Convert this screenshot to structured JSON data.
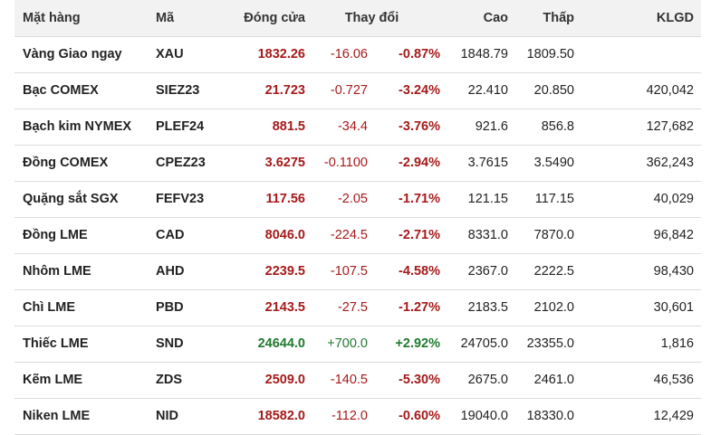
{
  "table": {
    "headers": {
      "name": "Mặt hàng",
      "code": "Mã",
      "close": "Đóng cửa",
      "change": "Thay đổi",
      "high": "Cao",
      "low": "Thấp",
      "volume": "KLGD"
    },
    "rows": [
      {
        "name": "Vàng Giao ngay",
        "code": "XAU",
        "close": "1832.26",
        "change": "-16.06",
        "pct": "-0.87%",
        "high": "1848.79",
        "low": "1809.50",
        "volume": "",
        "direction": "down"
      },
      {
        "name": "Bạc COMEX",
        "code": "SIEZ23",
        "close": "21.723",
        "change": "-0.727",
        "pct": "-3.24%",
        "high": "22.410",
        "low": "20.850",
        "volume": "420,042",
        "direction": "down"
      },
      {
        "name": "Bạch kim NYMEX",
        "code": "PLEF24",
        "close": "881.5",
        "change": "-34.4",
        "pct": "-3.76%",
        "high": "921.6",
        "low": "856.8",
        "volume": "127,682",
        "direction": "down"
      },
      {
        "name": "Đồng COMEX",
        "code": "CPEZ23",
        "close": "3.6275",
        "change": "-0.1100",
        "pct": "-2.94%",
        "high": "3.7615",
        "low": "3.5490",
        "volume": "362,243",
        "direction": "down"
      },
      {
        "name": "Quặng sắt SGX",
        "code": "FEFV23",
        "close": "117.56",
        "change": "-2.05",
        "pct": "-1.71%",
        "high": "121.15",
        "low": "117.15",
        "volume": "40,029",
        "direction": "down"
      },
      {
        "name": "Đồng LME",
        "code": "CAD",
        "close": "8046.0",
        "change": "-224.5",
        "pct": "-2.71%",
        "high": "8331.0",
        "low": "7870.0",
        "volume": "96,842",
        "direction": "down"
      },
      {
        "name": "Nhôm LME",
        "code": "AHD",
        "close": "2239.5",
        "change": "-107.5",
        "pct": "-4.58%",
        "high": "2367.0",
        "low": "2222.5",
        "volume": "98,430",
        "direction": "down"
      },
      {
        "name": "Chì LME",
        "code": "PBD",
        "close": "2143.5",
        "change": "-27.5",
        "pct": "-1.27%",
        "high": "2183.5",
        "low": "2102.0",
        "volume": "30,601",
        "direction": "down"
      },
      {
        "name": "Thiếc LME",
        "code": "SND",
        "close": "24644.0",
        "change": "+700.0",
        "pct": "+2.92%",
        "high": "24705.0",
        "low": "23355.0",
        "volume": "1,816",
        "direction": "up"
      },
      {
        "name": "Kẽm LME",
        "code": "ZDS",
        "close": "2509.0",
        "change": "-140.5",
        "pct": "-5.30%",
        "high": "2675.0",
        "low": "2461.0",
        "volume": "46,536",
        "direction": "down"
      },
      {
        "name": "Niken LME",
        "code": "NID",
        "close": "18582.0",
        "change": "-112.0",
        "pct": "-0.60%",
        "high": "19040.0",
        "low": "18330.0",
        "volume": "12,429",
        "direction": "down"
      }
    ]
  },
  "colors": {
    "down": "#a51a1a",
    "up": "#1f7a2e",
    "header_bg": "#f2f2f2",
    "row_border": "#dcdcdc"
  }
}
